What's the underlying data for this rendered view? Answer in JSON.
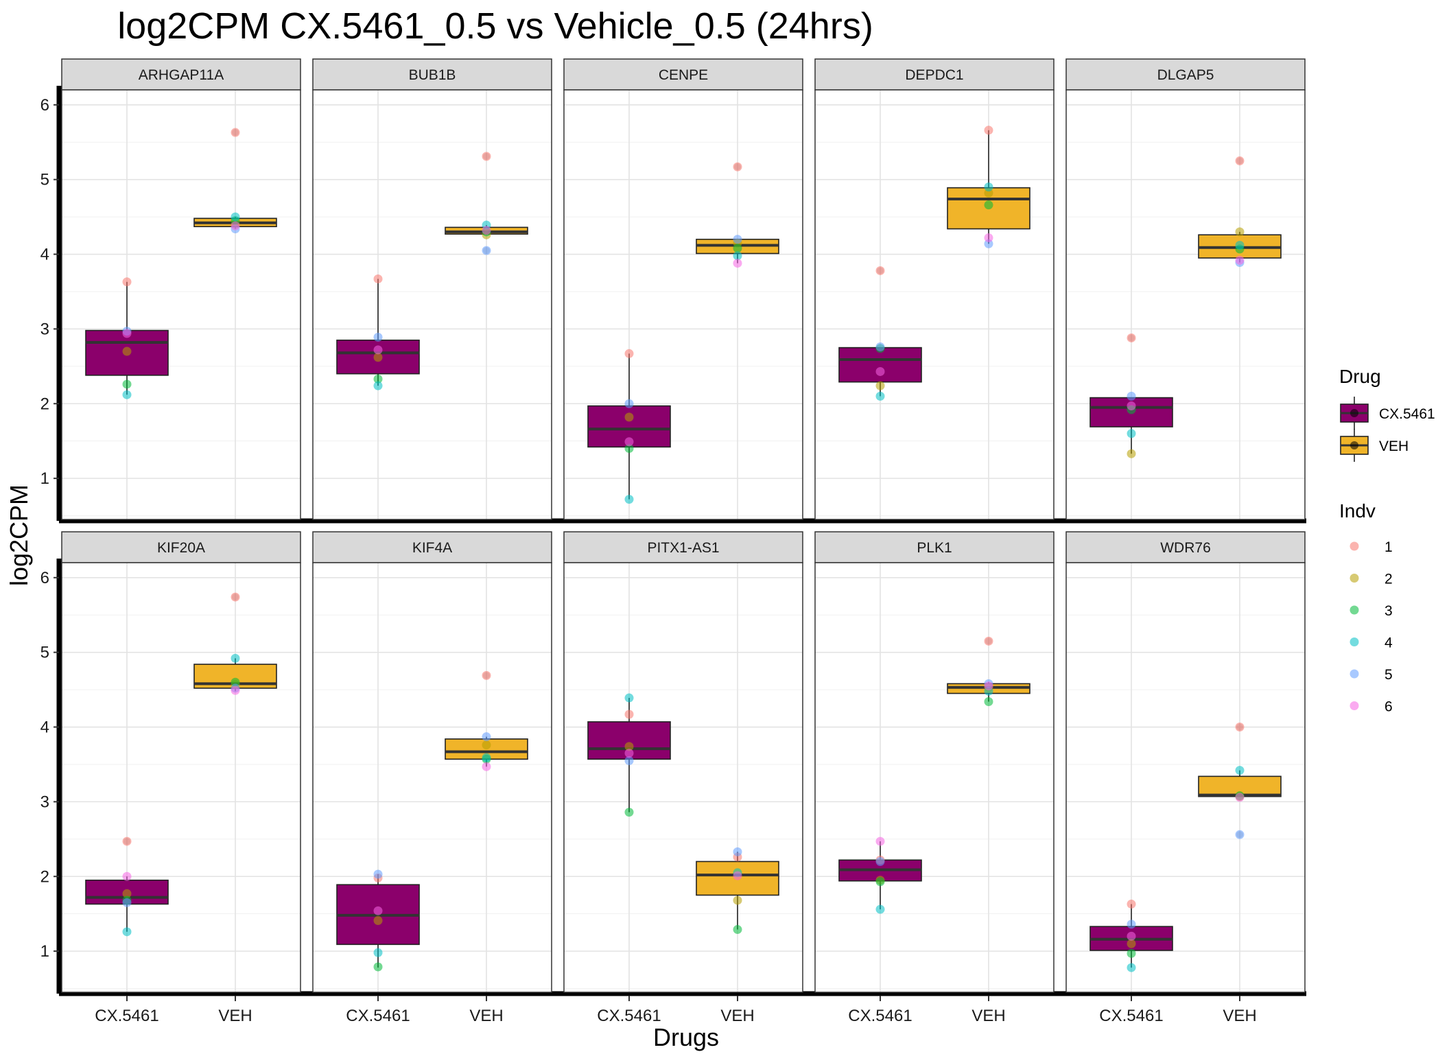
{
  "chart_data": {
    "type": "box",
    "title": "log2CPM CX.5461_0.5 vs Vehicle_0.5 (24hrs)",
    "xlabel": "Drugs",
    "ylabel": "log2CPM",
    "ylim": [
      0.45,
      6.2
    ],
    "yticks": [
      1,
      2,
      3,
      4,
      5,
      6
    ],
    "categories": [
      "CX.5461",
      "VEH"
    ],
    "grid": true,
    "fill_colors": {
      "CX.5461": "#8B006B",
      "VEH": "#F0B429"
    },
    "indv_colors": {
      "1": "#F8766D",
      "2": "#B79F00",
      "3": "#00BA38",
      "4": "#00BFC4",
      "5": "#619CFF",
      "6": "#F564E3"
    },
    "legend": {
      "position": "right",
      "drug_title": "Drug",
      "drug_items": [
        "CX.5461",
        "VEH"
      ],
      "indv_title": "Indv",
      "indv_items": [
        "1",
        "2",
        "3",
        "4",
        "5",
        "6"
      ]
    },
    "panels": [
      {
        "gene": "ARHGAP11A",
        "groups": [
          {
            "drug": "CX.5461",
            "q1": 2.38,
            "median": 2.82,
            "q3": 2.98,
            "wlo": 2.12,
            "whi": 3.63,
            "points": [
              3.63,
              2.7,
              2.26,
              2.12,
              2.97,
              2.94
            ]
          },
          {
            "drug": "VEH",
            "q1": 4.37,
            "median": 4.42,
            "q3": 4.48,
            "wlo": 4.34,
            "whi": 4.5,
            "points": [
              5.63,
              4.4,
              4.45,
              4.5,
              4.34,
              4.38
            ],
            "outliers": [
              5.63
            ]
          }
        ]
      },
      {
        "gene": "BUB1B",
        "groups": [
          {
            "drug": "CX.5461",
            "q1": 2.4,
            "median": 2.68,
            "q3": 2.85,
            "wlo": 2.24,
            "whi": 3.67,
            "points": [
              3.67,
              2.62,
              2.33,
              2.24,
              2.89,
              2.72
            ]
          },
          {
            "drug": "VEH",
            "q1": 4.27,
            "median": 4.3,
            "q3": 4.36,
            "wlo": 4.26,
            "whi": 4.39,
            "points": [
              5.31,
              4.26,
              4.3,
              4.39,
              4.05,
              4.32
            ],
            "outliers": [
              5.31,
              4.05
            ]
          }
        ]
      },
      {
        "gene": "CENPE",
        "groups": [
          {
            "drug": "CX.5461",
            "q1": 1.42,
            "median": 1.66,
            "q3": 1.97,
            "wlo": 0.72,
            "whi": 2.67,
            "points": [
              2.67,
              1.82,
              1.4,
              0.72,
              2.0,
              1.49
            ]
          },
          {
            "drug": "VEH",
            "q1": 4.01,
            "median": 4.12,
            "q3": 4.2,
            "wlo": 3.88,
            "whi": 4.2,
            "points": [
              5.17,
              4.15,
              4.08,
              3.98,
              4.2,
              3.88
            ],
            "outliers": [
              5.17
            ]
          }
        ]
      },
      {
        "gene": "DEPDC1",
        "groups": [
          {
            "drug": "CX.5461",
            "q1": 2.29,
            "median": 2.59,
            "q3": 2.75,
            "wlo": 2.1,
            "whi": 2.75,
            "points": [
              3.78,
              2.24,
              2.74,
              2.1,
              2.76,
              2.43
            ],
            "outliers": [
              3.78
            ]
          },
          {
            "drug": "VEH",
            "q1": 4.34,
            "median": 4.74,
            "q3": 4.89,
            "wlo": 4.14,
            "whi": 5.66,
            "points": [
              5.66,
              4.82,
              4.66,
              4.9,
              4.14,
              4.22
            ]
          }
        ]
      },
      {
        "gene": "DLGAP5",
        "groups": [
          {
            "drug": "CX.5461",
            "q1": 1.69,
            "median": 1.95,
            "q3": 2.08,
            "wlo": 1.33,
            "whi": 2.08,
            "points": [
              2.88,
              1.33,
              1.92,
              1.6,
              2.1,
              1.97
            ],
            "outliers": [
              2.88
            ]
          },
          {
            "drug": "VEH",
            "q1": 3.95,
            "median": 4.09,
            "q3": 4.26,
            "wlo": 3.89,
            "whi": 4.3,
            "points": [
              5.25,
              4.3,
              4.07,
              4.12,
              3.89,
              3.92
            ],
            "outliers": [
              5.25
            ]
          }
        ]
      },
      {
        "gene": "KIF20A",
        "groups": [
          {
            "drug": "CX.5461",
            "q1": 1.63,
            "median": 1.72,
            "q3": 1.95,
            "wlo": 1.26,
            "whi": 2.0,
            "points": [
              2.47,
              1.77,
              1.68,
              1.26,
              1.65,
              2.0
            ],
            "outliers": [
              2.47
            ]
          },
          {
            "drug": "VEH",
            "q1": 4.52,
            "median": 4.58,
            "q3": 4.84,
            "wlo": 4.48,
            "whi": 4.92,
            "points": [
              5.74,
              4.57,
              4.6,
              4.92,
              4.52,
              4.49
            ],
            "outliers": [
              5.74
            ]
          }
        ]
      },
      {
        "gene": "KIF4A",
        "groups": [
          {
            "drug": "CX.5461",
            "q1": 1.09,
            "median": 1.48,
            "q3": 1.89,
            "wlo": 0.78,
            "whi": 2.03,
            "points": [
              1.98,
              1.41,
              0.79,
              0.98,
              2.03,
              1.54
            ]
          },
          {
            "drug": "VEH",
            "q1": 3.57,
            "median": 3.67,
            "q3": 3.84,
            "wlo": 3.47,
            "whi": 3.87,
            "points": [
              4.69,
              3.76,
              3.57,
              3.59,
              3.87,
              3.47
            ],
            "outliers": [
              4.69
            ]
          }
        ]
      },
      {
        "gene": "PITX1-AS1",
        "groups": [
          {
            "drug": "CX.5461",
            "q1": 3.57,
            "median": 3.71,
            "q3": 4.07,
            "wlo": 2.86,
            "whi": 4.39,
            "points": [
              4.17,
              3.74,
              2.86,
              4.39,
              3.55,
              3.65
            ]
          },
          {
            "drug": "VEH",
            "q1": 1.75,
            "median": 2.02,
            "q3": 2.2,
            "wlo": 1.29,
            "whi": 2.33,
            "points": [
              2.26,
              1.68,
              1.29,
              2.05,
              2.33,
              2.01
            ]
          }
        ]
      },
      {
        "gene": "PLK1",
        "groups": [
          {
            "drug": "CX.5461",
            "q1": 1.94,
            "median": 2.09,
            "q3": 2.22,
            "wlo": 1.56,
            "whi": 2.47,
            "points": [
              2.22,
              1.95,
              1.93,
              1.56,
              2.2,
              2.47
            ]
          },
          {
            "drug": "VEH",
            "q1": 4.45,
            "median": 4.53,
            "q3": 4.58,
            "wlo": 4.34,
            "whi": 4.6,
            "points": [
              5.15,
              4.53,
              4.34,
              4.48,
              4.58,
              4.55
            ],
            "outliers": [
              5.15
            ]
          }
        ]
      },
      {
        "gene": "WDR76",
        "groups": [
          {
            "drug": "CX.5461",
            "q1": 1.01,
            "median": 1.16,
            "q3": 1.33,
            "wlo": 0.78,
            "whi": 1.63,
            "points": [
              1.63,
              1.1,
              0.97,
              0.78,
              1.36,
              1.2
            ]
          },
          {
            "drug": "VEH",
            "q1": 3.07,
            "median": 3.09,
            "q3": 3.34,
            "wlo": 3.07,
            "whi": 3.42,
            "points": [
              4.0,
              3.07,
              3.08,
              3.42,
              2.56,
              3.06
            ],
            "outliers": [
              4.0,
              2.56
            ]
          }
        ]
      }
    ]
  }
}
